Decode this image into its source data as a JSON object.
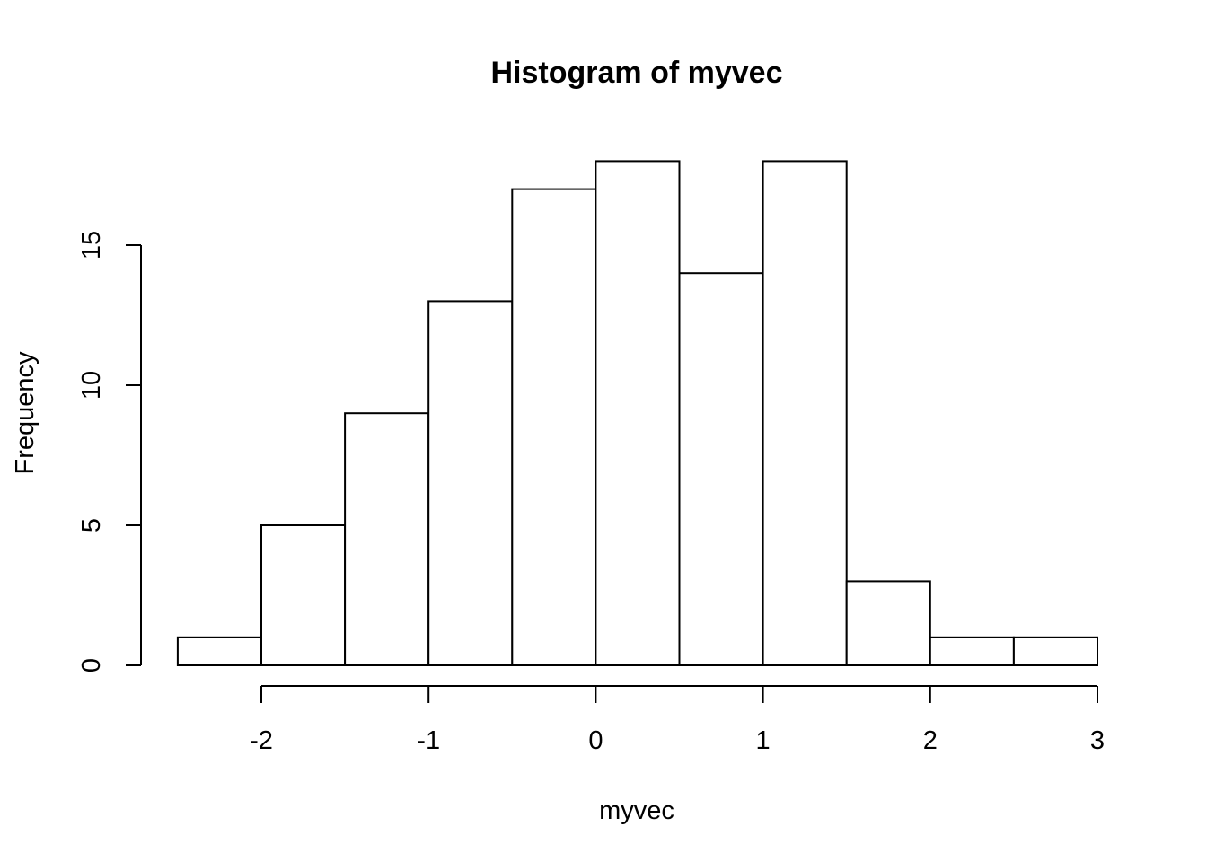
{
  "chart_data": {
    "type": "bar",
    "title": "Histogram of myvec",
    "xlabel": "myvec",
    "ylabel": "Frequency",
    "bins": [
      {
        "start": -2.5,
        "end": -2.0,
        "count": 1
      },
      {
        "start": -2.0,
        "end": -1.5,
        "count": 5
      },
      {
        "start": -1.5,
        "end": -1.0,
        "count": 9
      },
      {
        "start": -1.0,
        "end": -0.5,
        "count": 13
      },
      {
        "start": -0.5,
        "end": 0.0,
        "count": 17
      },
      {
        "start": 0.0,
        "end": 0.5,
        "count": 18
      },
      {
        "start": 0.5,
        "end": 1.0,
        "count": 14
      },
      {
        "start": 1.0,
        "end": 1.5,
        "count": 18
      },
      {
        "start": 1.5,
        "end": 2.0,
        "count": 3
      },
      {
        "start": 2.0,
        "end": 2.5,
        "count": 1
      },
      {
        "start": 2.5,
        "end": 3.0,
        "count": 1
      }
    ],
    "x_ticks": [
      -2,
      -1,
      0,
      1,
      2,
      3
    ],
    "y_ticks": [
      0,
      5,
      10,
      15
    ],
    "xlim": [
      -2.5,
      3
    ],
    "ylim": [
      0,
      18
    ],
    "grid": false,
    "colors": {
      "bar_fill": "#ffffff",
      "bar_stroke": "#000000"
    }
  }
}
